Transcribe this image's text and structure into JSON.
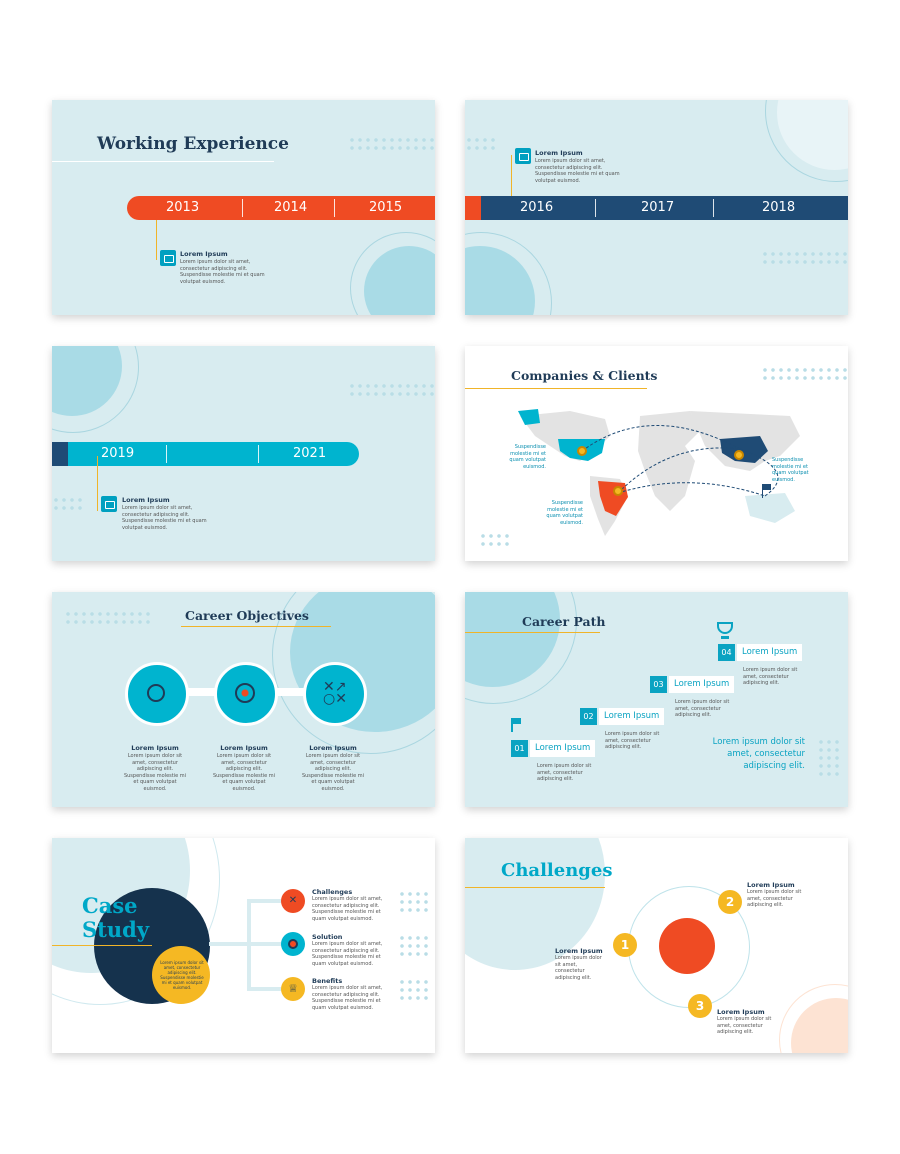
{
  "colors": {
    "light_bg": "#d8ecf0",
    "teal": "#00b4cf",
    "navy": "#1f3b57",
    "orange": "#ef4b23",
    "yellow": "#f5b823"
  },
  "slide1": {
    "title": "Working Experience",
    "years": [
      "2013",
      "2014",
      "2015"
    ],
    "item_title": "Lorem Ipsum",
    "item_text": "Lorem ipsum dolor sit amet, consectetur adipiscing elit. Suspendisse molestie mi et quam volutpat euismod."
  },
  "slide2": {
    "years": [
      "2016",
      "2017",
      "2018"
    ],
    "item_title": "Lorem Ipsum",
    "item_text": "Lorem ipsum dolor sit amet, consectetur adipiscing elit. Suspendisse molestie mi et quam volutpat euismod."
  },
  "slide3": {
    "years": [
      "2019",
      "2021"
    ],
    "item_title": "Lorem Ipsum",
    "item_text": "Lorem ipsum dolor sit amet, consectetur adipiscing elit. Suspendisse molestie mi et quam volutpat euismod."
  },
  "slide4": {
    "title": "Companies & Clients",
    "label_na": "Suspendisse molestie mi et quam volutpat euismod.",
    "label_sa": "Suspendisse molestie mi et quam volutpat euismod.",
    "label_as": "Suspendisse molestie mi et quam volutpat euismod."
  },
  "slide5": {
    "title": "Career Objectives",
    "items": [
      {
        "title": "Lorem Ipsum",
        "text": "Lorem ipsum dolor sit amet, consectetur adipiscing elit. Suspendisse molestie mi et quam volutpat euismod."
      },
      {
        "title": "Lorem Ipsum",
        "text": "Lorem ipsum dolor sit amet, consectetur adipiscing elit. Suspendisse molestie mi et quam volutpat euismod."
      },
      {
        "title": "Lorem Ipsum",
        "text": "Lorem ipsum dolor sit amet, consectetur adipiscing elit. Suspendisse molestie mi et quam volutpat euismod."
      }
    ]
  },
  "slide6": {
    "title": "Career Path",
    "steps": [
      {
        "num": "01",
        "label": "Lorem Ipsum",
        "text": "Lorem ipsum dolor sit amet, consectetur adipiscing elit."
      },
      {
        "num": "02",
        "label": "Lorem Ipsum",
        "text": "Lorem ipsum dolor sit amet, consectetur adipiscing elit."
      },
      {
        "num": "03",
        "label": "Lorem Ipsum",
        "text": "Lorem ipsum dolor sit amet, consectetur adipiscing elit."
      },
      {
        "num": "04",
        "label": "Lorem Ipsum",
        "text": "Lorem ipsum dolor sit amet, consectetur adipiscing elit."
      }
    ],
    "side_text": "Lorem ipsum dolor sit amet, consectetur adipiscing elit."
  },
  "slide7": {
    "title_line1": "Case",
    "title_line2": "Study",
    "circle_text": "Lorem ipsum dolor sit amet, consectetur adipiscing elit. Suspendisse molestie mi et quam volutpat euismod.",
    "items": [
      {
        "title": "Challenges",
        "text": "Lorem ipsum dolor sit amet, consectetur adipiscing elit. Suspendisse molestie mi et quam volutpat euismod."
      },
      {
        "title": "Solution",
        "text": "Lorem ipsum dolor sit amet, consectetur adipiscing elit. Suspendisse molestie mi et quam volutpat euismod."
      },
      {
        "title": "Benefits",
        "text": "Lorem ipsum dolor sit amet, consectetur adipiscing elit. Suspendisse molestie mi et quam volutpat euismod."
      }
    ]
  },
  "slide8": {
    "title": "Challenges",
    "items": [
      {
        "num": "1",
        "title": "Lorem Ipsum",
        "text": "Lorem ipsum dolor sit amet, consectetur adipiscing elit."
      },
      {
        "num": "2",
        "title": "Lorem Ipsum",
        "text": "Lorem ipsum dolor sit amet, consectetur adipiscing elit."
      },
      {
        "num": "3",
        "title": "Lorem Ipsum",
        "text": "Lorem ipsum dolor sit amet, consectetur adipiscing elit."
      }
    ]
  }
}
